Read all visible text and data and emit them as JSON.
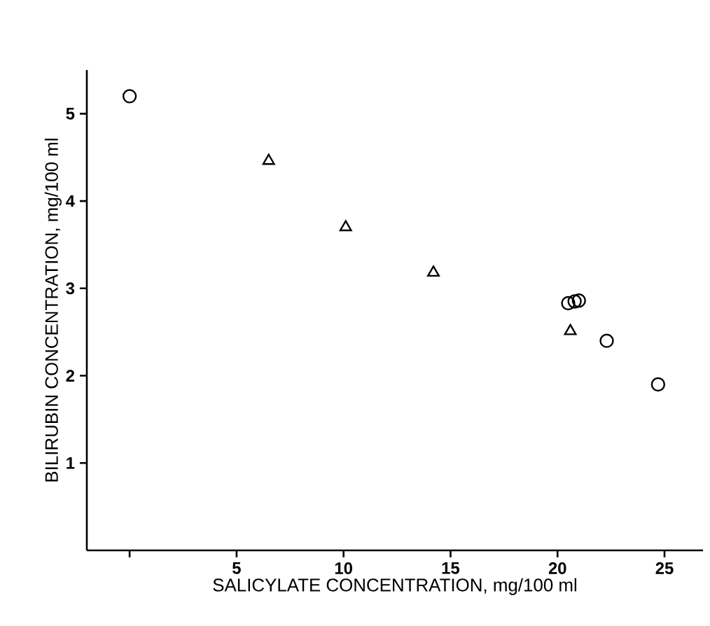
{
  "chart_data": {
    "type": "scatter",
    "xlabel": "SALICYLATE CONCENTRATION, mg/100 ml",
    "ylabel": "BILIRUBIN CONCENTRATION, mg/100 ml",
    "xlim": [
      -2,
      26.8
    ],
    "ylim": [
      0,
      5.5
    ],
    "xticks": [
      {
        "value": 0,
        "label": null
      },
      5,
      10,
      15,
      20,
      25
    ],
    "yticks": [
      1,
      2,
      3,
      4,
      5
    ],
    "grid": false,
    "series": [
      {
        "marker": "circle",
        "color": "#000000",
        "x": [
          0,
          20.5,
          20.8,
          21.0,
          22.3,
          24.7
        ],
        "values": [
          5.2,
          2.83,
          2.85,
          2.86,
          2.4,
          1.9
        ]
      },
      {
        "marker": "triangle",
        "color": "#000000",
        "x": [
          6.5,
          10.1,
          14.2,
          20.6
        ],
        "values": [
          4.46,
          3.7,
          3.18,
          2.51
        ]
      }
    ]
  }
}
